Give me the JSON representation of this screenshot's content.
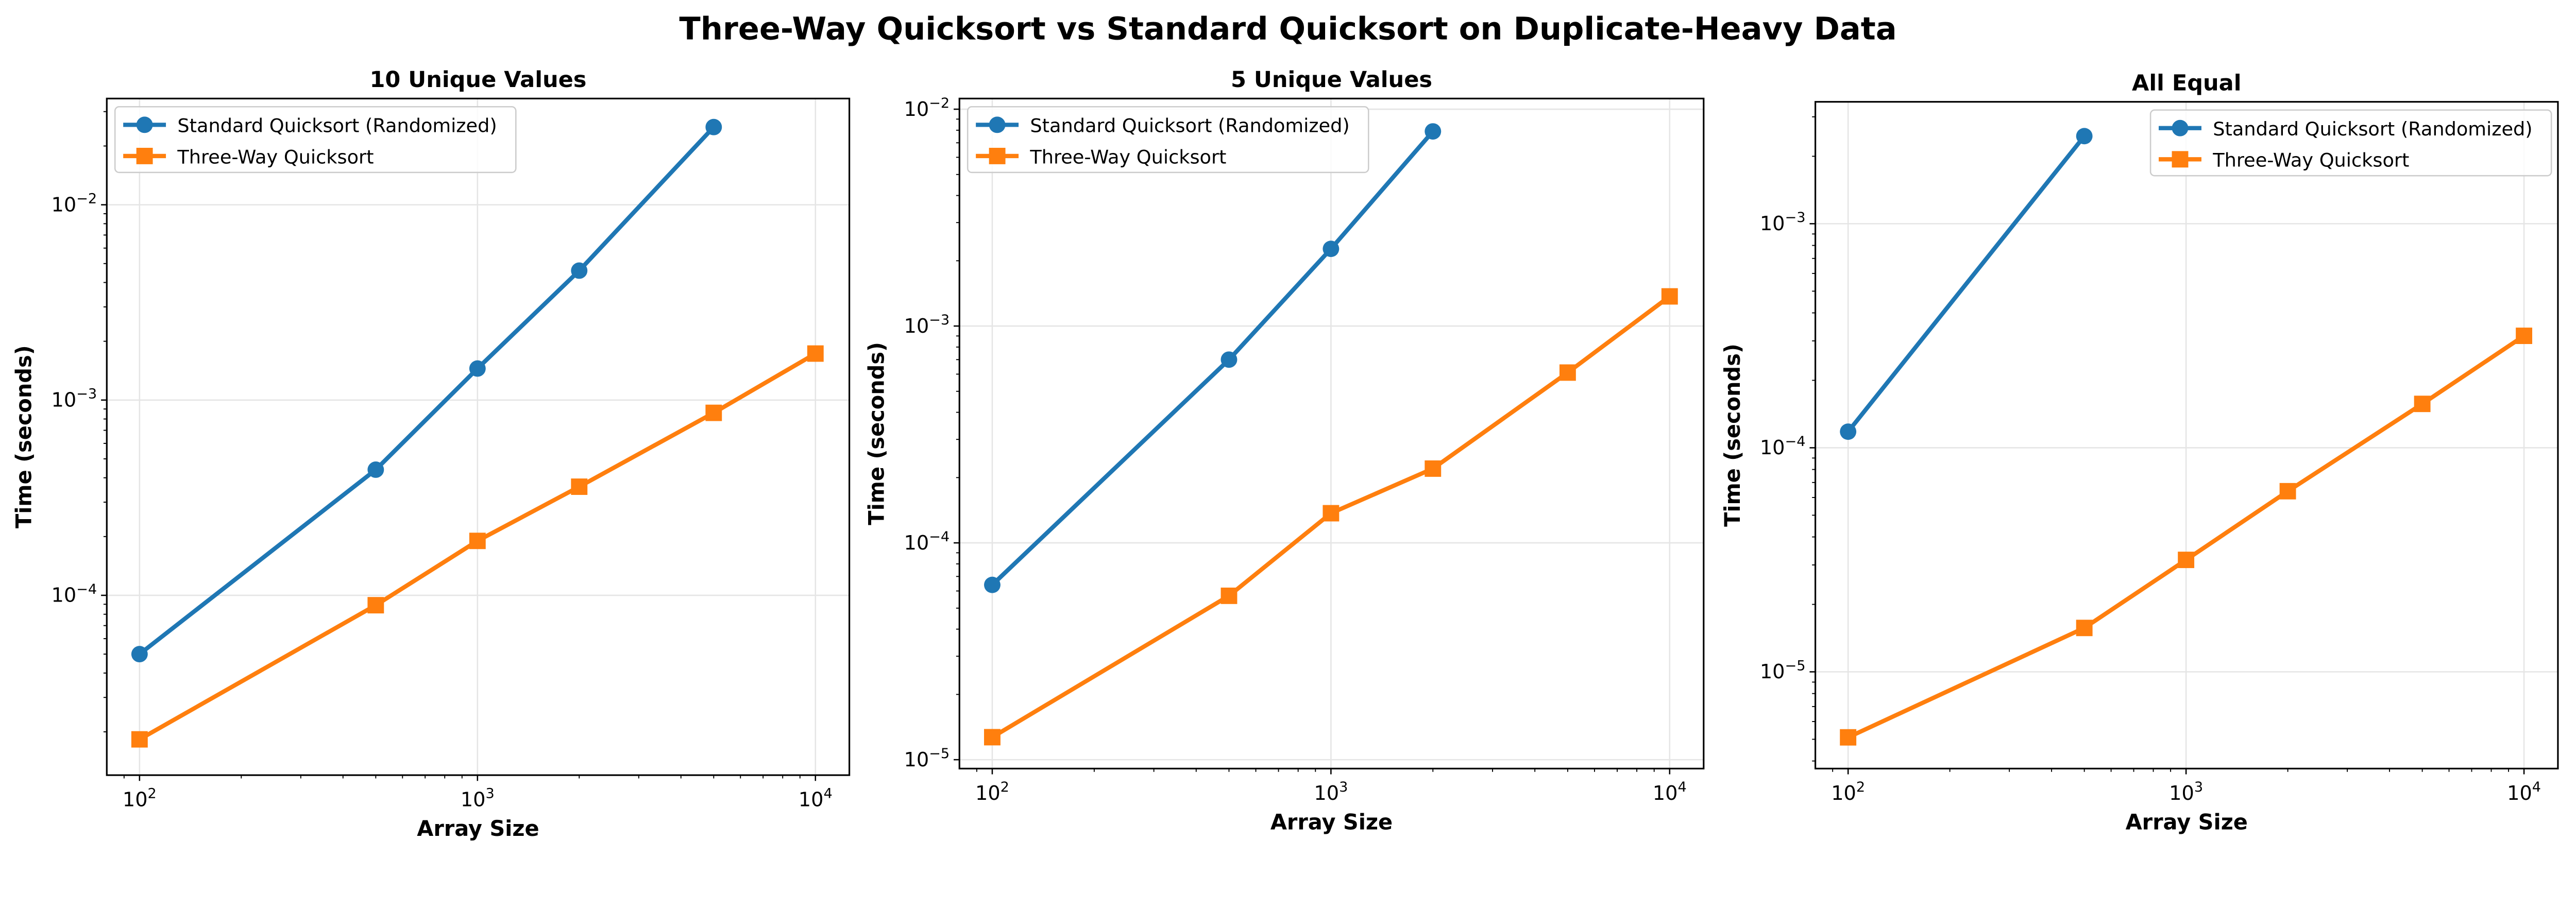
{
  "title": "Three-Way Quicksort vs Standard Quicksort on Duplicate-Heavy Data",
  "colors": {
    "standard": "#1f77b4",
    "three_way": "#ff7f0e",
    "grid": "#e5e5e5"
  },
  "chart_data": [
    {
      "type": "line",
      "title": "10 Unique Values",
      "xlabel": "Array Size",
      "ylabel": "Time (seconds)",
      "xscale": "log",
      "yscale": "log",
      "xlim": [
        80,
        12600
      ],
      "ylim": [
        1.2e-05,
        0.035
      ],
      "xticks": [
        {
          "value": 100,
          "base": "10",
          "exp": "2"
        },
        {
          "value": 1000,
          "base": "10",
          "exp": "3"
        },
        {
          "value": 10000,
          "base": "10",
          "exp": "4"
        }
      ],
      "yticks": [
        {
          "value": 0.0001,
          "base": "10",
          "exp": "−4"
        },
        {
          "value": 0.001,
          "base": "10",
          "exp": "−3"
        },
        {
          "value": 0.01,
          "base": "10",
          "exp": "−2"
        }
      ],
      "grid": true,
      "legend": "upper-left",
      "series": [
        {
          "name": "Standard Quicksort (Randomized)",
          "marker": "circle",
          "x": [
            100,
            500,
            1000,
            2000,
            5000
          ],
          "y": [
            5e-05,
            0.00044,
            0.00145,
            0.0046,
            0.025
          ]
        },
        {
          "name": "Three-Way Quicksort",
          "marker": "square",
          "x": [
            100,
            500,
            1000,
            2000,
            5000,
            10000
          ],
          "y": [
            1.83e-05,
            8.9e-05,
            0.00019,
            0.00036,
            0.00086,
            0.00173
          ]
        }
      ]
    },
    {
      "type": "line",
      "title": "5 Unique Values",
      "xlabel": "Array Size",
      "ylabel": "Time (seconds)",
      "xscale": "log",
      "yscale": "log",
      "xlim": [
        80,
        12600
      ],
      "ylim": [
        9.1e-06,
        0.0112
      ],
      "xticks": [
        {
          "value": 100,
          "base": "10",
          "exp": "2"
        },
        {
          "value": 1000,
          "base": "10",
          "exp": "3"
        },
        {
          "value": 10000,
          "base": "10",
          "exp": "4"
        }
      ],
      "yticks": [
        {
          "value": 1e-05,
          "base": "10",
          "exp": "−5"
        },
        {
          "value": 0.0001,
          "base": "10",
          "exp": "−4"
        },
        {
          "value": 0.001,
          "base": "10",
          "exp": "−3"
        },
        {
          "value": 0.01,
          "base": "10",
          "exp": "−2"
        }
      ],
      "grid": true,
      "legend": "upper-left",
      "series": [
        {
          "name": "Standard Quicksort (Randomized)",
          "marker": "circle",
          "x": [
            100,
            500,
            1000,
            2000
          ],
          "y": [
            6.4e-05,
            0.0007,
            0.00227,
            0.0079
          ]
        },
        {
          "name": "Three-Way Quicksort",
          "marker": "square",
          "x": [
            100,
            500,
            1000,
            2000,
            5000,
            10000
          ],
          "y": [
            1.27e-05,
            5.7e-05,
            0.000137,
            0.00022,
            0.00061,
            0.00137
          ]
        }
      ]
    },
    {
      "type": "line",
      "title": "All Equal",
      "xlabel": "Array Size",
      "ylabel": "Time (seconds)",
      "xscale": "log",
      "yscale": "log",
      "xlim": [
        80,
        12600
      ],
      "ylim": [
        3.7e-06,
        0.0035
      ],
      "xticks": [
        {
          "value": 100,
          "base": "10",
          "exp": "2"
        },
        {
          "value": 1000,
          "base": "10",
          "exp": "3"
        },
        {
          "value": 10000,
          "base": "10",
          "exp": "4"
        }
      ],
      "yticks": [
        {
          "value": 1e-05,
          "base": "10",
          "exp": "−5"
        },
        {
          "value": 0.0001,
          "base": "10",
          "exp": "−4"
        },
        {
          "value": 0.001,
          "base": "10",
          "exp": "−3"
        }
      ],
      "grid": true,
      "legend": "upper-right",
      "series": [
        {
          "name": "Standard Quicksort (Randomized)",
          "marker": "circle",
          "x": [
            100,
            500
          ],
          "y": [
            0.000118,
            0.00246
          ]
        },
        {
          "name": "Three-Way Quicksort",
          "marker": "square",
          "x": [
            100,
            500,
            1000,
            2000,
            5000,
            10000
          ],
          "y": [
            5.1e-06,
            1.57e-05,
            3.16e-05,
            6.4e-05,
            0.000157,
            0.000316
          ]
        }
      ]
    }
  ]
}
